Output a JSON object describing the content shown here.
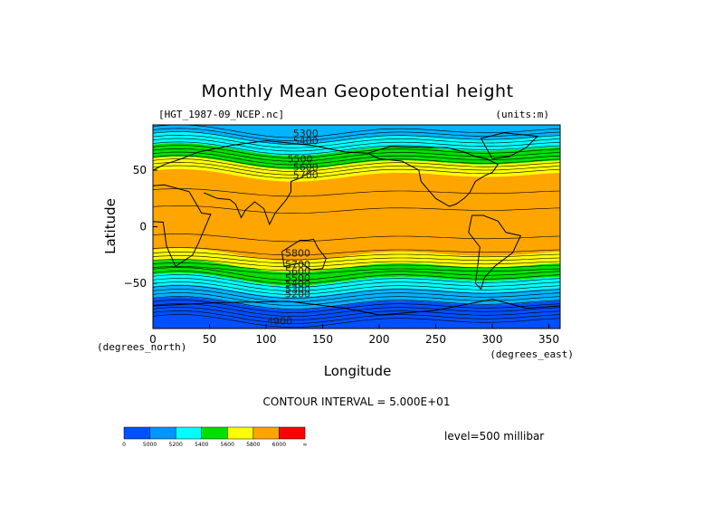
{
  "chart_data": {
    "type": "heatmap",
    "title": "Monthly Mean Geopotential height",
    "dataset_label": "[HGT_1987-09_NCEP.nc]",
    "units_label": "(units:m)",
    "xlabel": "Longitude",
    "ylabel": "Latitude",
    "x_unit_label": "(degrees_east)",
    "y_unit_label": "(degrees_north)",
    "xlim": [
      0,
      360
    ],
    "ylim": [
      -90,
      90
    ],
    "x_ticks": [
      0,
      50,
      100,
      150,
      200,
      250,
      300,
      350
    ],
    "y_ticks": [
      50,
      0,
      -50
    ],
    "contour_interval_text": "CONTOUR INTERVAL = 5.000E+01",
    "level_text": "level=500 millibar",
    "contour_labels": [
      {
        "text": "5300",
        "lon": 135,
        "lat": 83
      },
      {
        "text": "5400",
        "lon": 135,
        "lat": 76
      },
      {
        "text": "5500",
        "lon": 130,
        "lat": 60
      },
      {
        "text": "5600",
        "lon": 135,
        "lat": 53
      },
      {
        "text": "5700",
        "lon": 135,
        "lat": 46
      },
      {
        "text": "5800",
        "lon": 128,
        "lat": -23
      },
      {
        "text": "5700",
        "lon": 128,
        "lat": -33
      },
      {
        "text": "5600",
        "lon": 128,
        "lat": -39
      },
      {
        "text": "5500",
        "lon": 128,
        "lat": -45
      },
      {
        "text": "5400",
        "lon": 128,
        "lat": -50
      },
      {
        "text": "5300",
        "lon": 128,
        "lat": -55
      },
      {
        "text": "5200",
        "lon": 128,
        "lat": -59
      },
      {
        "text": "4900",
        "lon": 112,
        "lat": -83
      }
    ],
    "colorbar": {
      "colors": [
        "#0050ff",
        "#0096ff",
        "#00ffff",
        "#00e000",
        "#ffff00",
        "#ffa500",
        "#ff0000"
      ],
      "labels": [
        "0",
        "5000",
        "5200",
        "5400",
        "5600",
        "5800",
        "6000",
        "∞"
      ]
    },
    "bands": [
      {
        "lat_top": 90,
        "lat_bottom": 78,
        "color": "#00b4ff"
      },
      {
        "lat_top": 78,
        "lat_bottom": 68,
        "color": "#00ffff"
      },
      {
        "lat_top": 68,
        "lat_bottom": 56,
        "color": "#00e000"
      },
      {
        "lat_top": 56,
        "lat_bottom": 45,
        "color": "#ffff00"
      },
      {
        "lat_top": 45,
        "lat_bottom": -25,
        "color": "#ffa500"
      },
      {
        "lat_top": -25,
        "lat_bottom": -35,
        "color": "#ffff00"
      },
      {
        "lat_top": -35,
        "lat_bottom": -47,
        "color": "#00e000"
      },
      {
        "lat_top": -47,
        "lat_bottom": -57,
        "color": "#00ffff"
      },
      {
        "lat_top": -57,
        "lat_bottom": -68,
        "color": "#00b4ff"
      },
      {
        "lat_top": -68,
        "lat_bottom": -90,
        "color": "#0050ff"
      }
    ]
  }
}
